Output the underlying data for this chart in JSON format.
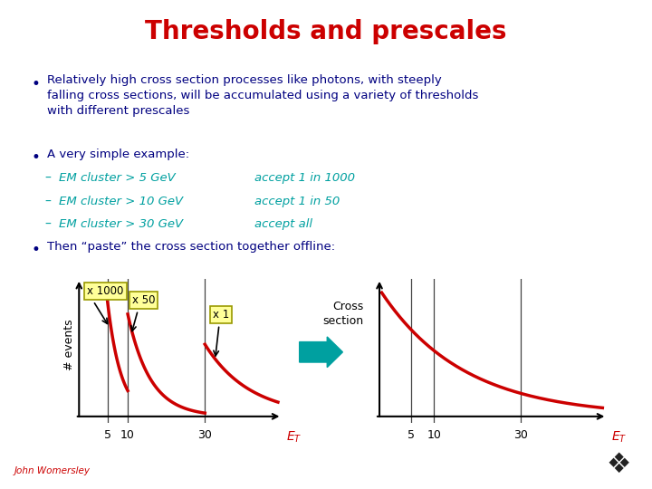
{
  "title": "Thresholds and prescales",
  "title_color": "#CC0000",
  "background_color": "#FFFFFF",
  "text_color_dark": "#000080",
  "text_color_teal": "#00A0A0",
  "bullet1": "Relatively high cross section processes like photons, with steeply\nfalling cross sections, will be accumulated using a variety of thresholds\nwith different prescales",
  "bullet2": "A very simple example:",
  "sub_bullets": [
    [
      "EM cluster > 5 GeV",
      "accept 1 in 1000"
    ],
    [
      "EM cluster > 10 GeV",
      "accept 1 in 50"
    ],
    [
      "EM cluster > 30 GeV",
      "accept all"
    ]
  ],
  "bullet3": "Then “paste” the cross section together offline:",
  "prescale_labels": [
    "x 1000",
    "x 50",
    "x 1"
  ],
  "prescale_box_facecolor": "#FFFF99",
  "prescale_box_edgecolor": "#999900",
  "curve_color": "#CC0000",
  "threshold_line_color": "#444444",
  "arrow_fill_color": "#00A0A0",
  "axis_arrow_color": "#000000",
  "footer": "John Womersley",
  "footer_color": "#CC0000"
}
